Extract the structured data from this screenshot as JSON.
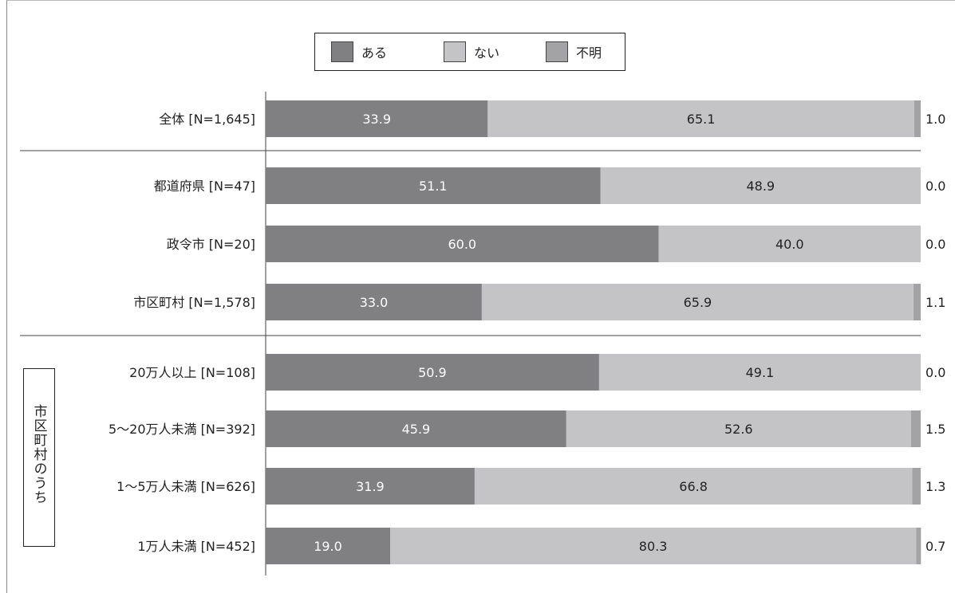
{
  "legend": {
    "items": [
      {
        "label": "ある",
        "color": "#808083"
      },
      {
        "label": "ない",
        "color": "#c4c4c6"
      },
      {
        "label": "不明",
        "color": "#a3a3a5"
      }
    ]
  },
  "group_label": "市区町村のうち",
  "colors": {
    "aru": "#808083",
    "nai": "#c4c4c6",
    "fumei": "#a3a3a5"
  },
  "chart_data": {
    "type": "bar",
    "orientation": "horizontal",
    "stacked": true,
    "categories": [
      "全体 [N=1,645]",
      "都道府県 [N=47]",
      "政令市 [N=20]",
      "市区町村 [N=1,578]",
      "20万人以上 [N=108]",
      "5～20万人未満 [N=392]",
      "1～5万人未満 [N=626]",
      "1万人未満 [N=452]"
    ],
    "series": [
      {
        "name": "ある",
        "values": [
          33.9,
          51.1,
          60.0,
          33.0,
          50.9,
          45.9,
          31.9,
          19.0
        ]
      },
      {
        "name": "ない",
        "values": [
          65.1,
          48.9,
          40.0,
          65.9,
          49.1,
          52.6,
          66.8,
          80.3
        ]
      },
      {
        "name": "不明",
        "values": [
          1.0,
          0.0,
          0.0,
          1.1,
          0.0,
          1.5,
          1.3,
          0.7
        ]
      }
    ],
    "value_labels": [
      [
        "33.9",
        "65.1",
        "1.0"
      ],
      [
        "51.1",
        "48.9",
        "0.0"
      ],
      [
        "60.0",
        "40.0",
        "0.0"
      ],
      [
        "33.0",
        "65.9",
        "1.1"
      ],
      [
        "50.9",
        "49.1",
        "0.0"
      ],
      [
        "45.9",
        "52.6",
        "1.5"
      ],
      [
        "31.9",
        "66.8",
        "1.3"
      ],
      [
        "19.0",
        "80.3",
        "0.7"
      ]
    ],
    "xlim": [
      0,
      100
    ],
    "groups": [
      [
        0
      ],
      [
        1,
        2,
        3
      ],
      [
        4,
        5,
        6,
        7
      ]
    ],
    "legend_position": "top-center",
    "grid": false
  }
}
